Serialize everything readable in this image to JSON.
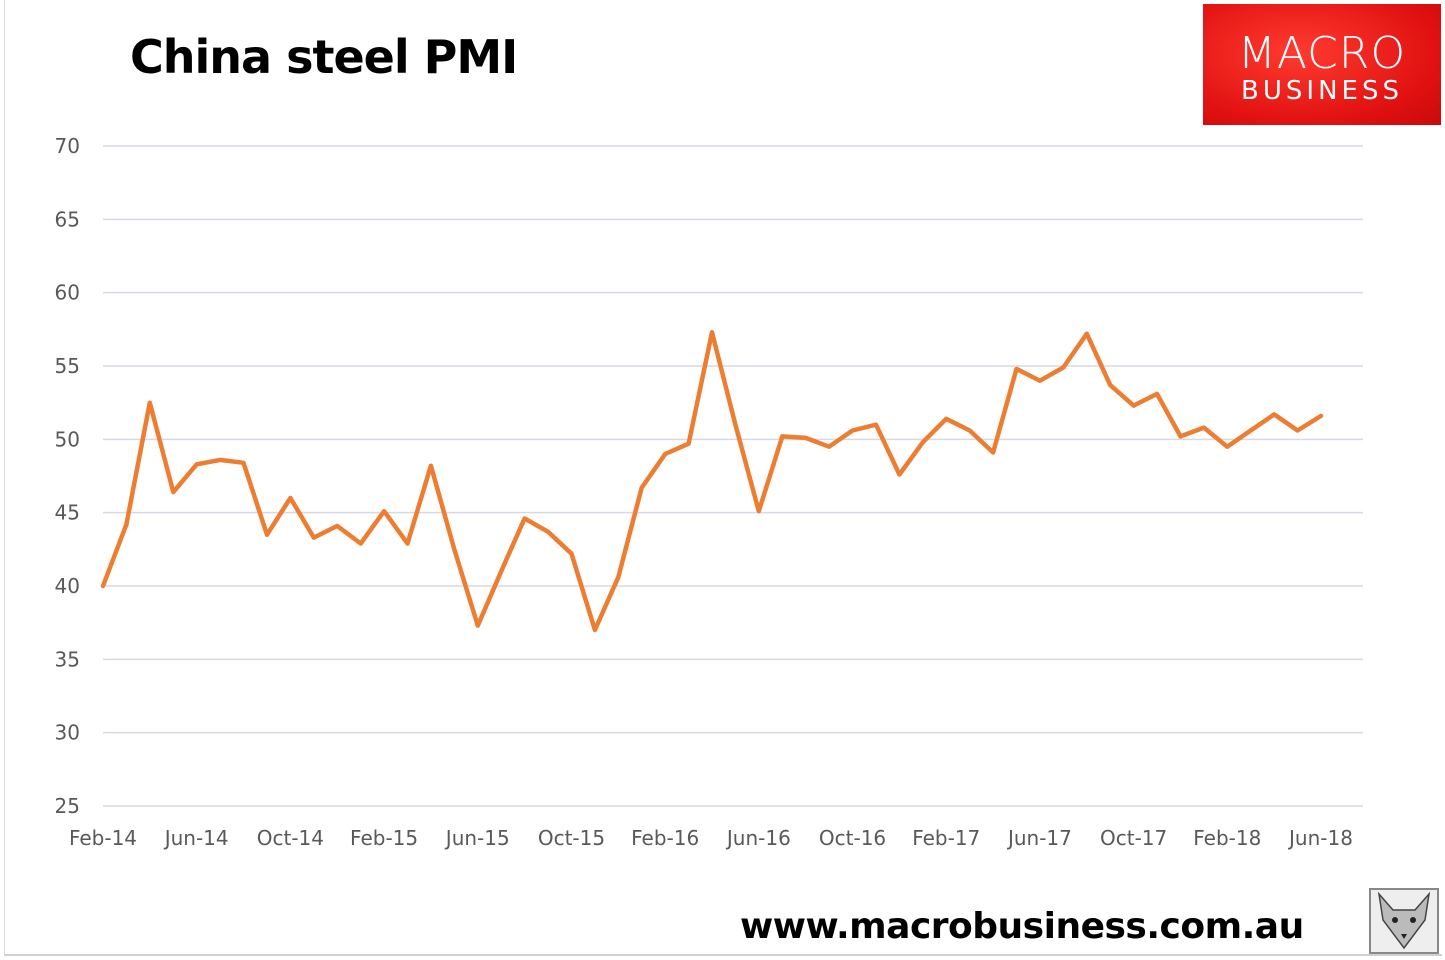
{
  "brand": {
    "line1": "MACRO",
    "line2": "BUSINESS",
    "url": "www.macrobusiness.com.au",
    "logo_color": "#e81818"
  },
  "chart_data": {
    "type": "line",
    "title": "China steel PMI",
    "xlabel": "",
    "ylabel": "",
    "ylim": [
      25,
      70
    ],
    "yticks": [
      25,
      30,
      35,
      40,
      45,
      50,
      55,
      60,
      65,
      70
    ],
    "xtick_labels": [
      "Feb-14",
      "Jun-14",
      "Oct-14",
      "Feb-15",
      "Jun-15",
      "Oct-15",
      "Feb-16",
      "Jun-16",
      "Oct-16",
      "Feb-17",
      "Jun-17",
      "Oct-17",
      "Feb-18",
      "Jun-18"
    ],
    "grid": true,
    "legend": "none",
    "categories": [
      "Feb-14",
      "Mar-14",
      "Apr-14",
      "May-14",
      "Jun-14",
      "Jul-14",
      "Aug-14",
      "Sep-14",
      "Oct-14",
      "Nov-14",
      "Dec-14",
      "Jan-15",
      "Feb-15",
      "Mar-15",
      "Apr-15",
      "May-15",
      "Jun-15",
      "Jul-15",
      "Aug-15",
      "Sep-15",
      "Oct-15",
      "Nov-15",
      "Dec-15",
      "Jan-16",
      "Feb-16",
      "Mar-16",
      "Apr-16",
      "May-16",
      "Jun-16",
      "Jul-16",
      "Aug-16",
      "Sep-16",
      "Oct-16",
      "Nov-16",
      "Dec-16",
      "Jan-17",
      "Feb-17",
      "Mar-17",
      "Apr-17",
      "May-17",
      "Jun-17",
      "Jul-17",
      "Aug-17",
      "Sep-17",
      "Oct-17",
      "Nov-17",
      "Dec-17",
      "Jan-18",
      "Feb-18",
      "Mar-18",
      "Apr-18",
      "May-18",
      "Jun-18"
    ],
    "series": [
      {
        "name": "China steel PMI",
        "color": "#ed7d31",
        "values": [
          40.0,
          44.2,
          52.5,
          46.4,
          48.3,
          48.6,
          48.4,
          43.5,
          46.0,
          43.3,
          44.1,
          42.9,
          45.1,
          42.9,
          48.2,
          42.5,
          37.3,
          41.0,
          44.6,
          43.7,
          42.2,
          37.0,
          40.6,
          46.7,
          49.0,
          49.7,
          57.3,
          51.0,
          45.1,
          50.2,
          50.1,
          49.5,
          50.6,
          51.0,
          47.6,
          49.8,
          51.4,
          50.6,
          49.1,
          54.8,
          54.0,
          54.9,
          57.2,
          53.7,
          52.3,
          53.1,
          50.2,
          50.8,
          49.5,
          50.6,
          51.7,
          50.6,
          51.6
        ]
      }
    ]
  }
}
